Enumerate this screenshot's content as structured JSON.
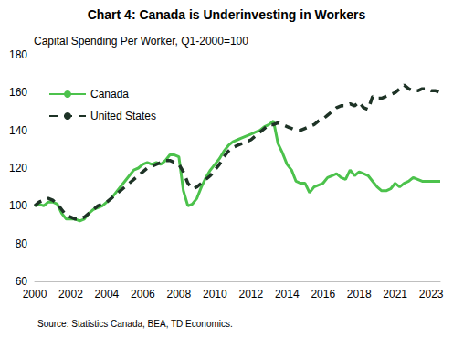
{
  "chart_data": {
    "type": "line",
    "title": "Chart 4: Canada is Underinvesting in Workers",
    "subtitle": "Capital Spending Per Worker, Q1-2000=100",
    "source": "Source: Statistics Canada, BEA, TD Economics.",
    "categories": [
      "2000",
      null,
      null,
      null,
      null,
      null,
      null,
      null,
      "2002",
      null,
      null,
      null,
      null,
      null,
      null,
      null,
      "2004",
      null,
      null,
      null,
      null,
      null,
      null,
      null,
      "2006",
      null,
      null,
      null,
      null,
      null,
      null,
      null,
      "2008",
      null,
      null,
      null,
      null,
      null,
      null,
      null,
      "2010",
      null,
      null,
      null,
      null,
      null,
      null,
      null,
      "2012",
      null,
      null,
      null,
      null,
      null,
      null,
      null,
      "2014",
      null,
      null,
      null,
      null,
      null,
      null,
      null,
      "2016",
      null,
      null,
      null,
      null,
      null,
      null,
      null,
      "2018",
      null,
      null,
      null,
      null,
      null,
      null,
      null,
      "2021",
      null,
      null,
      null,
      null,
      null,
      null,
      null,
      "2023",
      null,
      null
    ],
    "series": [
      {
        "name": "Canada",
        "color": "#4cc24c",
        "line_style": "solid",
        "values": [
          100,
          101,
          100,
          102,
          102,
          101,
          96,
          93,
          93,
          93,
          92,
          93,
          96,
          98,
          99,
          100,
          102,
          104,
          107,
          110,
          113,
          116,
          119,
          120,
          122,
          123,
          122,
          123,
          122,
          124,
          127,
          127,
          126,
          108,
          100,
          101,
          104,
          110,
          115,
          119,
          122,
          125,
          129,
          132,
          134,
          135,
          136,
          137,
          138,
          139,
          140,
          142,
          143,
          145,
          133,
          128,
          122,
          119,
          113,
          112,
          112,
          107,
          110,
          111,
          112,
          115,
          116,
          117,
          115,
          114,
          119,
          116,
          118,
          117,
          116,
          113,
          110,
          108,
          108,
          109,
          112,
          110,
          112,
          113,
          115,
          114,
          113,
          113,
          113,
          113,
          113
        ]
      },
      {
        "name": "United States",
        "color": "#1e3326",
        "line_style": "dashed",
        "values": [
          100,
          102,
          103,
          104,
          103,
          101,
          98,
          95,
          94,
          93,
          93,
          94,
          96,
          98,
          100,
          101,
          102,
          104,
          106,
          108,
          110,
          112,
          114,
          116,
          118,
          120,
          121,
          122,
          123,
          124,
          124,
          123,
          122,
          118,
          112,
          109,
          110,
          112,
          114,
          116,
          119,
          122,
          126,
          129,
          131,
          132,
          133,
          134,
          135,
          137,
          139,
          141,
          143,
          143,
          144,
          143,
          142,
          141,
          140,
          140,
          141,
          142,
          143,
          145,
          146,
          148,
          150,
          152,
          153,
          153,
          154,
          153,
          155,
          152,
          151,
          158,
          157,
          157,
          158,
          159,
          160,
          162,
          164,
          162,
          161,
          161,
          162,
          162,
          161,
          161,
          160
        ]
      }
    ],
    "ylim": [
      60,
      180
    ],
    "yticks": [
      60,
      80,
      100,
      120,
      140,
      160,
      180
    ],
    "grid": false,
    "legend": "upper left"
  }
}
